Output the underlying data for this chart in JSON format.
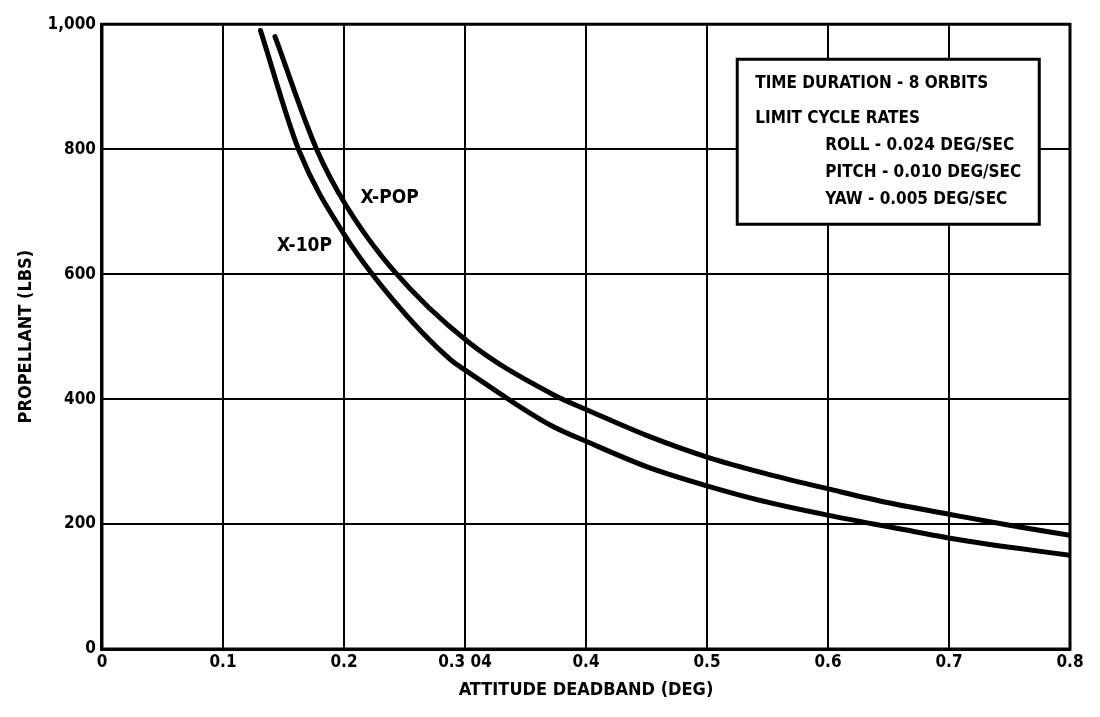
{
  "chart_data": {
    "type": "line",
    "xlabel": "ATTITUDE DEADBAND (DEG)",
    "ylabel": "PROPELLANT (LBS)",
    "series": [
      {
        "name": "X-10P",
        "color": "#000000",
        "x": [
          0.131,
          0.163,
          0.2,
          0.24,
          0.288,
          0.302,
          0.37,
          0.403,
          0.45,
          0.502,
          0.55,
          0.603,
          0.671,
          0.702,
          0.75,
          0.8
        ],
        "values": [
          990,
          797,
          664,
          560,
          463,
          444,
          359,
          330,
          292,
          260,
          235,
          213,
          188,
          177,
          163,
          150
        ]
      },
      {
        "name": "X-POP",
        "color": "#000000",
        "x": [
          0.143,
          0.178,
          0.202,
          0.24,
          0.303,
          0.373,
          0.403,
          0.45,
          0.502,
          0.55,
          0.603,
          0.65,
          0.702,
          0.75,
          0.8
        ],
        "values": [
          980,
          797,
          709,
          608,
          491,
          407,
          381,
          342,
          306,
          280,
          255,
          234,
          215,
          198,
          182
        ]
      }
    ],
    "xlim": [
      0,
      0.8
    ],
    "xticks": [
      0,
      0.1,
      0.2,
      {
        "value": 0.3,
        "label": "0.3 04"
      },
      0.4,
      0.5,
      0.6,
      0.7,
      0.8
    ],
    "ylim": [
      0,
      1000
    ],
    "yticks": [
      0,
      200,
      400,
      600,
      800,
      {
        "value": 1000,
        "label": "1,000"
      }
    ],
    "grid": true,
    "legend": false,
    "marker": "none",
    "line_style": "solid",
    "annotations": [
      "TIME DURATION - 8 ORBITS",
      "LIMIT CYCLE RATES",
      "ROLL - 0.024 DEG/SEC",
      "PITCH - 0.010 DEG/SEC",
      "YAW - 0.005 DEG/SEC"
    ]
  }
}
